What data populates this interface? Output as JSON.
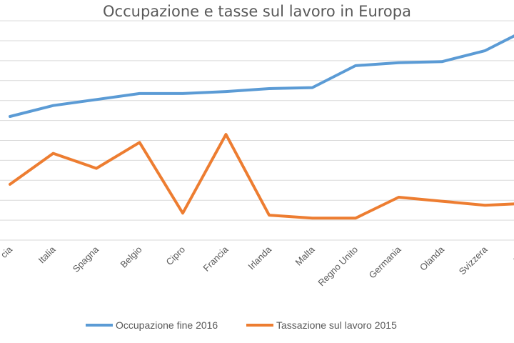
{
  "chart_data": {
    "type": "line",
    "title": "Occupazione e tasse sul lavoro in Europa",
    "categories": [
      "Grecia",
      "Italia",
      "Spagna",
      "Belgio",
      "Cipro",
      "Francia",
      "Irlanda",
      "Malta",
      "Regno Unito",
      "Germania",
      "Olanda",
      "Svizzera",
      "Islanda"
    ],
    "visible_categories": [
      "cia",
      "Italia",
      "Spagna",
      "Belgio",
      "Cipro",
      "Francia",
      "Irlanda",
      "Malta",
      "Regno Unito",
      "Germania",
      "Olanda",
      "Svizzera",
      "Islan"
    ],
    "series": [
      {
        "name": "Occupazione fine 2016",
        "color": "#5B9BD5",
        "values": [
          5.2,
          5.75,
          6.05,
          6.35,
          6.35,
          6.45,
          6.6,
          6.65,
          7.75,
          7.9,
          7.95,
          8.5,
          9.6
        ]
      },
      {
        "name": "Tassazione sul lavoro 2015",
        "color": "#ED7D31",
        "values": [
          1.8,
          3.35,
          2.6,
          3.9,
          0.35,
          4.3,
          0.25,
          0.1,
          0.1,
          1.15,
          0.95,
          0.75,
          0.85
        ]
      }
    ],
    "ylim": [
      -1,
      10
    ],
    "grid": true,
    "legend_position": "bottom"
  }
}
